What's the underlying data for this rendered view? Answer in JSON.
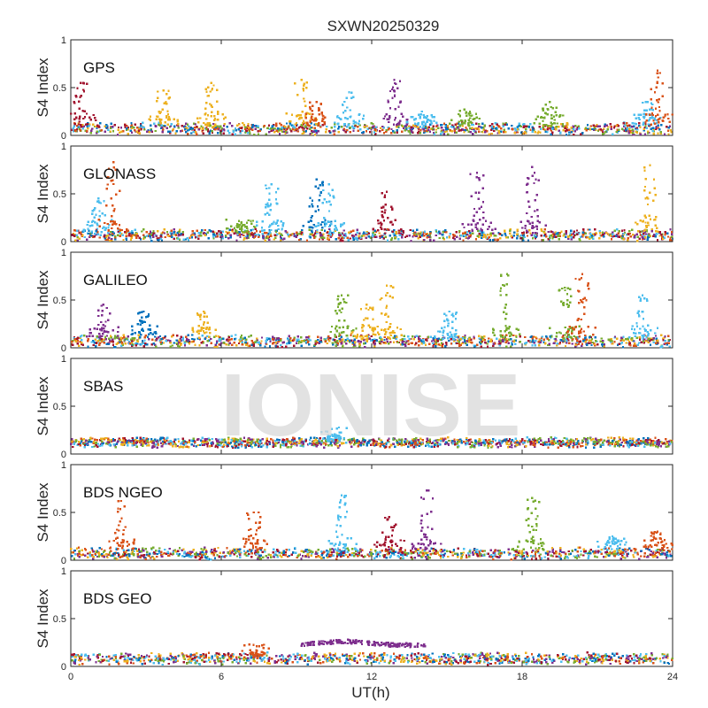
{
  "figure": {
    "title": "SXWN20250329",
    "watermark": "IONISE"
  },
  "chart_data": {
    "type": "scatter",
    "title": "SXWN20250329",
    "xlabel": "UT(h)",
    "ylabel": "S4 Index",
    "xlim": [
      0,
      24
    ],
    "ylim": [
      0,
      1
    ],
    "x_ticks": [
      0,
      6,
      12,
      18,
      24
    ],
    "y_ticks": [
      0,
      0.5,
      1
    ],
    "grid": false,
    "colors": [
      "#0072BD",
      "#D95319",
      "#EDB120",
      "#7E2F8E",
      "#77AC30",
      "#4DBEEE",
      "#A2142F"
    ],
    "panels": [
      {
        "name": "GPS",
        "baseline_level": 0.07,
        "spikes": [
          {
            "x": 0.4,
            "peak": 0.55,
            "color": "#A2142F"
          },
          {
            "x": 3.7,
            "peak": 0.47,
            "color": "#EDB120"
          },
          {
            "x": 5.6,
            "peak": 0.55,
            "color": "#EDB120"
          },
          {
            "x": 9.2,
            "peak": 0.58,
            "color": "#EDB120"
          },
          {
            "x": 9.8,
            "peak": 0.35,
            "color": "#D95319"
          },
          {
            "x": 11.1,
            "peak": 0.45,
            "color": "#4DBEEE"
          },
          {
            "x": 12.9,
            "peak": 0.58,
            "color": "#7E2F8E"
          },
          {
            "x": 14.0,
            "peak": 0.25,
            "color": "#4DBEEE"
          },
          {
            "x": 15.7,
            "peak": 0.27,
            "color": "#77AC30"
          },
          {
            "x": 19.1,
            "peak": 0.35,
            "color": "#77AC30"
          },
          {
            "x": 23.0,
            "peak": 0.35,
            "color": "#4DBEEE"
          },
          {
            "x": 23.4,
            "peak": 0.68,
            "color": "#D95319"
          }
        ]
      },
      {
        "name": "GLONASS",
        "baseline_level": 0.07,
        "spikes": [
          {
            "x": 1.1,
            "peak": 0.45,
            "color": "#4DBEEE"
          },
          {
            "x": 1.7,
            "peak": 0.83,
            "color": "#D95319"
          },
          {
            "x": 6.8,
            "peak": 0.2,
            "color": "#77AC30"
          },
          {
            "x": 8.0,
            "peak": 0.6,
            "color": "#4DBEEE"
          },
          {
            "x": 9.8,
            "peak": 0.65,
            "color": "#0072BD"
          },
          {
            "x": 10.3,
            "peak": 0.6,
            "color": "#4DBEEE"
          },
          {
            "x": 12.6,
            "peak": 0.52,
            "color": "#A2142F"
          },
          {
            "x": 16.2,
            "peak": 0.72,
            "color": "#7E2F8E"
          },
          {
            "x": 18.4,
            "peak": 0.78,
            "color": "#7E2F8E"
          },
          {
            "x": 23.1,
            "peak": 0.8,
            "color": "#EDB120"
          }
        ]
      },
      {
        "name": "GALILEO",
        "baseline_level": 0.07,
        "spikes": [
          {
            "x": 1.3,
            "peak": 0.45,
            "color": "#7E2F8E"
          },
          {
            "x": 2.9,
            "peak": 0.38,
            "color": "#0072BD"
          },
          {
            "x": 5.3,
            "peak": 0.38,
            "color": "#EDB120"
          },
          {
            "x": 10.8,
            "peak": 0.55,
            "color": "#77AC30"
          },
          {
            "x": 11.8,
            "peak": 0.45,
            "color": "#EDB120"
          },
          {
            "x": 12.6,
            "peak": 0.65,
            "color": "#EDB120"
          },
          {
            "x": 15.1,
            "peak": 0.38,
            "color": "#4DBEEE"
          },
          {
            "x": 17.4,
            "peak": 0.77,
            "color": "#77AC30"
          },
          {
            "x": 19.7,
            "peak": 0.63,
            "color": "#77AC30"
          },
          {
            "x": 20.4,
            "peak": 0.77,
            "color": "#D95319"
          },
          {
            "x": 22.8,
            "peak": 0.55,
            "color": "#4DBEEE"
          }
        ]
      },
      {
        "name": "SBAS",
        "baseline_level": 0.12,
        "spikes": [
          {
            "x": 10.5,
            "peak": 0.2,
            "color": "#4DBEEE"
          }
        ]
      },
      {
        "name": "BDS NGEO",
        "baseline_level": 0.07,
        "spikes": [
          {
            "x": 2.0,
            "peak": 0.62,
            "color": "#D95319"
          },
          {
            "x": 7.3,
            "peak": 0.5,
            "color": "#D95319"
          },
          {
            "x": 10.8,
            "peak": 0.68,
            "color": "#4DBEEE"
          },
          {
            "x": 12.7,
            "peak": 0.45,
            "color": "#A2142F"
          },
          {
            "x": 14.2,
            "peak": 0.73,
            "color": "#7E2F8E"
          },
          {
            "x": 18.4,
            "peak": 0.65,
            "color": "#77AC30"
          },
          {
            "x": 21.6,
            "peak": 0.25,
            "color": "#4DBEEE"
          },
          {
            "x": 23.4,
            "peak": 0.3,
            "color": "#D95319"
          }
        ]
      },
      {
        "name": "BDS GEO",
        "baseline_level": 0.08,
        "spikes": [
          {
            "x": 7.4,
            "peak": 0.15,
            "color": "#D95319"
          }
        ],
        "arc": {
          "x_start": 9.2,
          "x_end": 14.2,
          "level": 0.22,
          "peak": 0.3,
          "color": "#7E2F8E"
        }
      }
    ]
  }
}
